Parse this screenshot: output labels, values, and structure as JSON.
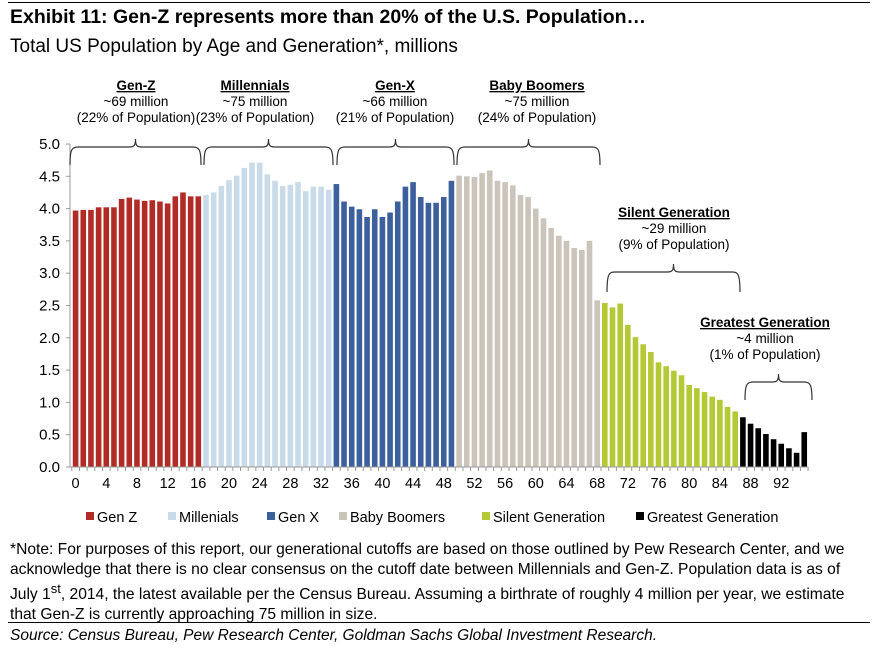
{
  "title": "Exhibit 11: Gen-Z represents more than 20% of the U.S. Population…",
  "subtitle": "Total US Population by Age and Generation*, millions",
  "note": {
    "part1": "*Note: For purposes of this report, our generational cutoffs are based on those outlined by Pew Research Center, and we acknowledge that there is no clear consensus on the cutoff date between Millennials and Gen-Z. Population data is as of July 1",
    "sup": "st",
    "part2": ", 2014, the latest available per the Census Bureau. Assuming a birthrate of roughly 4 million per year, we estimate that Gen-Z is currently approaching 75 million in size."
  },
  "source": "Source: Census Bureau, Pew Research Center, Goldman Sachs Global Investment Research.",
  "chart_data": {
    "type": "bar",
    "xlabel": "",
    "ylabel": "",
    "ylim": [
      0,
      5.0
    ],
    "yticks": [
      "0.0",
      "0.5",
      "1.0",
      "1.5",
      "2.0",
      "2.5",
      "3.0",
      "3.5",
      "4.0",
      "4.5",
      "5.0"
    ],
    "xticks": [
      "0",
      "4",
      "8",
      "12",
      "16",
      "20",
      "24",
      "28",
      "32",
      "36",
      "40",
      "44",
      "48",
      "52",
      "56",
      "60",
      "64",
      "68",
      "72",
      "76",
      "80",
      "84",
      "88",
      "92"
    ],
    "x_start": 0,
    "legend_position": "bottom",
    "series": [
      {
        "name": "Gen Z",
        "color": "#b22c27",
        "ages": [
          0,
          16
        ],
        "values": [
          3.97,
          3.98,
          3.98,
          4.02,
          4.02,
          4.02,
          4.15,
          4.17,
          4.14,
          4.12,
          4.13,
          4.11,
          4.08,
          4.19,
          4.25,
          4.19,
          4.19
        ]
      },
      {
        "name": "Millenials",
        "color": "#c9dbe8",
        "ages": [
          17,
          33
        ],
        "values": [
          4.21,
          4.25,
          4.35,
          4.44,
          4.51,
          4.63,
          4.71,
          4.71,
          4.53,
          4.43,
          4.35,
          4.37,
          4.41,
          4.27,
          4.34,
          4.34,
          4.29
        ]
      },
      {
        "name": "Gen X",
        "color": "#3d5f9c",
        "ages": [
          34,
          49
        ],
        "values": [
          4.38,
          4.11,
          4.03,
          3.99,
          3.87,
          3.99,
          3.87,
          3.94,
          4.11,
          4.34,
          4.41,
          4.18,
          4.09,
          4.09,
          4.18,
          4.43
        ]
      },
      {
        "name": "Baby Boomers",
        "color": "#cbc4bb",
        "ages": [
          50,
          68
        ],
        "values": [
          4.51,
          4.5,
          4.49,
          4.55,
          4.59,
          4.43,
          4.41,
          4.36,
          4.21,
          4.18,
          4.0,
          3.85,
          3.7,
          3.58,
          3.5,
          3.39,
          3.36,
          3.5,
          2.58
        ]
      },
      {
        "name": "Silent Generation",
        "color": "#b5c936",
        "ages": [
          69,
          86
        ],
        "values": [
          2.54,
          2.47,
          2.53,
          2.2,
          2.01,
          1.9,
          1.78,
          1.62,
          1.56,
          1.49,
          1.42,
          1.27,
          1.22,
          1.16,
          1.09,
          1.04,
          0.93,
          0.86
        ]
      },
      {
        "name": "Greatest Generation",
        "color": "#000000",
        "ages": [
          87,
          95
        ],
        "values": [
          0.77,
          0.67,
          0.6,
          0.51,
          0.43,
          0.36,
          0.29,
          0.22,
          0.54
        ]
      }
    ],
    "annotations": [
      {
        "name": "Gen-Z",
        "lines": [
          "~69 million",
          "(22% of  Population)"
        ]
      },
      {
        "name": "Millennials",
        "lines": [
          "~75 million",
          "(23% of Population)"
        ]
      },
      {
        "name": "Gen-X",
        "lines": [
          "~66 million",
          "(21% of Population)"
        ]
      },
      {
        "name": "Baby Boomers",
        "lines": [
          "~75 million",
          "(24% of Population)"
        ]
      },
      {
        "name": "Silent Generation",
        "lines": [
          "~29 million",
          "(9% of Population)"
        ]
      },
      {
        "name": "Greatest Generation",
        "lines": [
          "~4 million",
          "(1% of Population)"
        ]
      }
    ]
  }
}
